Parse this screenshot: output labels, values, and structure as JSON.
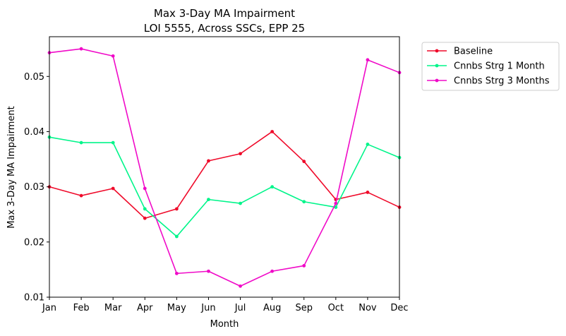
{
  "chart_data": {
    "type": "line",
    "title": "Max 3-Day MA Impairment",
    "subtitle": "LOI 5555, Across SSCs, EPP 25",
    "xlabel": "Month",
    "ylabel": "Max 3-Day MA Impairment",
    "categories": [
      "Jan",
      "Feb",
      "Mar",
      "Apr",
      "May",
      "Jun",
      "Jul",
      "Aug",
      "Sep",
      "Oct",
      "Nov",
      "Dec"
    ],
    "ylim": [
      0.01,
      0.0572
    ],
    "yticks": [
      "0.01",
      "0.02",
      "0.03",
      "0.04",
      "0.05"
    ],
    "grid": false,
    "legend_position": "outside-top-right",
    "series": [
      {
        "name": "Baseline",
        "color": "#ef0a2a",
        "values": [
          0.03,
          0.0284,
          0.0297,
          0.0243,
          0.026,
          0.0347,
          0.036,
          0.04,
          0.0346,
          0.0277,
          0.029,
          0.0263
        ]
      },
      {
        "name": "Cnnbs Strg 1 Month",
        "color": "#00f58a",
        "values": [
          0.039,
          0.038,
          0.038,
          0.026,
          0.021,
          0.0277,
          0.027,
          0.03,
          0.0273,
          0.0263,
          0.0377,
          0.0353
        ]
      },
      {
        "name": "Cnnbs Strg 3 Months",
        "color": "#f00ac8",
        "values": [
          0.0543,
          0.055,
          0.0537,
          0.0297,
          0.0143,
          0.0147,
          0.012,
          0.0147,
          0.0157,
          0.027,
          0.053,
          0.0507
        ]
      }
    ]
  }
}
